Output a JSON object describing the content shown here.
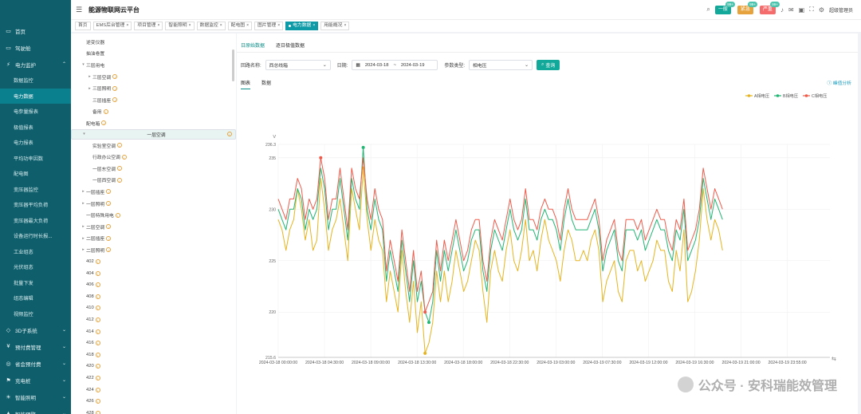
{
  "app": {
    "title": "能源物联网云平台"
  },
  "header": {
    "alarms": [
      {
        "label": "一般",
        "count": "99+",
        "color": "#13a99a"
      },
      {
        "label": "紧急",
        "count": "99+",
        "color": "#e6a23c"
      },
      {
        "label": "严重",
        "count": "99+",
        "color": "#f56c6c"
      }
    ],
    "user": "超级管理员"
  },
  "sidebar": {
    "items": [
      {
        "label": "首页",
        "icon": "▭"
      },
      {
        "label": "驾驶舱",
        "icon": "▭"
      },
      {
        "label": "电力监护",
        "icon": "⚡",
        "open": true,
        "children": [
          "数据监控",
          "电力数据",
          "电参量报表",
          "极值报表",
          "电力报表",
          "平均功率因数",
          "配电图",
          "变压器监控",
          "变压器平均负荷",
          "变压器最大负荷",
          "设备运行时长报...",
          "工业组态",
          "光伏组态",
          "批量下发",
          "组态编辑",
          "视频监控"
        ]
      },
      {
        "label": "3D子系统",
        "icon": "◇"
      },
      {
        "label": "预付费管理",
        "icon": "¥"
      },
      {
        "label": "省会预付费",
        "icon": "◎"
      },
      {
        "label": "充电桩",
        "icon": "⚑"
      },
      {
        "label": "智能照明",
        "icon": "☀"
      },
      {
        "label": "智能预警",
        "icon": "▲"
      }
    ],
    "active": "电力数据"
  },
  "tabs": [
    {
      "label": "首页"
    },
    {
      "label": "EMS后台管理"
    },
    {
      "label": "项目管理"
    },
    {
      "label": "智能照明"
    },
    {
      "label": "数据监控"
    },
    {
      "label": "配电图"
    },
    {
      "label": "图片管理"
    },
    {
      "label": "电力数据",
      "active": true
    },
    {
      "label": "用能概况"
    }
  ],
  "tree": {
    "nodes": [
      {
        "label": "逆变仪器",
        "indent": 0,
        "tg": ""
      },
      {
        "label": "抽油卷置",
        "indent": 0,
        "tg": ""
      },
      {
        "label": "三层用电",
        "indent": 0,
        "tg": "▾"
      },
      {
        "label": "三层空调",
        "indent": 1,
        "tg": "▸",
        "badge": true
      },
      {
        "label": "三层照明",
        "indent": 1,
        "tg": "▸",
        "badge": true
      },
      {
        "label": "三层插座",
        "indent": 1,
        "tg": "",
        "badge": true
      },
      {
        "label": "备用",
        "indent": 1,
        "tg": "",
        "badge": true
      },
      {
        "label": "配电箱",
        "indent": 0,
        "tg": "",
        "badge": true
      },
      {
        "label": "一层空调",
        "indent": 0,
        "tg": "▾",
        "badge": true,
        "sel": true
      },
      {
        "label": "实验室空调",
        "indent": 1,
        "tg": "",
        "badge": true
      },
      {
        "label": "行政办公空调",
        "indent": 1,
        "tg": "",
        "badge": true
      },
      {
        "label": "一层东空调",
        "indent": 1,
        "tg": "",
        "badge": true
      },
      {
        "label": "一层西空调",
        "indent": 1,
        "tg": "",
        "badge": true
      },
      {
        "label": "一层插座",
        "indent": 0,
        "tg": "▸",
        "badge": true
      },
      {
        "label": "一层照明",
        "indent": 0,
        "tg": "▸",
        "badge": true
      },
      {
        "label": "一层特殊用电",
        "indent": 0,
        "tg": "",
        "badge": true
      },
      {
        "label": "二层空调",
        "indent": 0,
        "tg": "▸",
        "badge": true
      },
      {
        "label": "二层插座",
        "indent": 0,
        "tg": "▸",
        "badge": true
      },
      {
        "label": "二层照明",
        "indent": 0,
        "tg": "▸",
        "badge": true
      },
      {
        "label": "402",
        "indent": 0,
        "tg": "",
        "badge": true
      },
      {
        "label": "404",
        "indent": 0,
        "tg": "",
        "badge": true
      },
      {
        "label": "406",
        "indent": 0,
        "tg": "",
        "badge": true
      },
      {
        "label": "408",
        "indent": 0,
        "tg": "",
        "badge": true
      },
      {
        "label": "410",
        "indent": 0,
        "tg": "",
        "badge": true
      },
      {
        "label": "412",
        "indent": 0,
        "tg": "",
        "badge": true
      },
      {
        "label": "414",
        "indent": 0,
        "tg": "",
        "badge": true
      },
      {
        "label": "416",
        "indent": 0,
        "tg": "",
        "badge": true
      },
      {
        "label": "418",
        "indent": 0,
        "tg": "",
        "badge": true
      },
      {
        "label": "420",
        "indent": 0,
        "tg": "",
        "badge": true
      },
      {
        "label": "422",
        "indent": 0,
        "tg": "",
        "badge": true
      },
      {
        "label": "424",
        "indent": 0,
        "tg": "",
        "badge": true
      },
      {
        "label": "426",
        "indent": 0,
        "tg": "",
        "badge": true
      },
      {
        "label": "428",
        "indent": 0,
        "tg": "",
        "badge": true
      }
    ]
  },
  "main": {
    "subtabs": [
      "日原始数据",
      "逐日极值数据"
    ],
    "form": {
      "loop_label": "回路名称:",
      "loop_value": "西总线箱",
      "date_label": "日期:",
      "date_start": "2024-03-18",
      "date_sep": "~",
      "date_end": "2024-03-19",
      "param_label": "参数类型:",
      "param_value": "相电压",
      "query": "查询"
    },
    "view_tabs": [
      "图表",
      "数据"
    ],
    "peak_link": "峰值分析"
  },
  "watermark": "公众号 · 安科瑞能效管理",
  "chart_data": {
    "type": "line",
    "yunit": "V",
    "ylim": [
      215.6,
      236.3
    ],
    "yticks": [
      215.6,
      220,
      225,
      230,
      235,
      236.3
    ],
    "x_labels": [
      "2024-03-18 00:00:00",
      "2024-03-18 04:30:00",
      "2024-03-18 09:00:00",
      "2024-03-18 13:30:00",
      "2024-03-18 18:00:00",
      "2024-03-18 22:30:00",
      "2024-03-19 03:00:00",
      "2024-03-19 07:30:00",
      "2024-03-19 12:00:00",
      "2024-03-19 16:30:00",
      "2024-03-19 21:00:00",
      "2024-03-19 23:55:00"
    ],
    "series": [
      {
        "name": "A相电压",
        "color": "#e6b422",
        "values": [
          229,
          228,
          226,
          228,
          229,
          232,
          230,
          227,
          229,
          226,
          227,
          233,
          230,
          226,
          228,
          229,
          231,
          228,
          225,
          232,
          230,
          228,
          234,
          229,
          226,
          229,
          227,
          226,
          221,
          224,
          222,
          220,
          226,
          222,
          219,
          223,
          218,
          221,
          216,
          217,
          219,
          224,
          221,
          224,
          221,
          223,
          226,
          224,
          222,
          223,
          225,
          227,
          226,
          222,
          219,
          224,
          226,
          224,
          223,
          226,
          228,
          225,
          224,
          226,
          229,
          225,
          226,
          224,
          227,
          229,
          227,
          226,
          225,
          223,
          226,
          228,
          227,
          225,
          225,
          226,
          225,
          227,
          228,
          226,
          221,
          223,
          224,
          225,
          222,
          221,
          225,
          226,
          226,
          224,
          225,
          223,
          224,
          225,
          227,
          226,
          226,
          223,
          222,
          226,
          224,
          228,
          221,
          222,
          224,
          227,
          232,
          229,
          227,
          229,
          228,
          226
        ]
      },
      {
        "name": "B相电压",
        "color": "#22b573",
        "values": [
          230,
          229,
          228,
          230,
          230,
          232,
          231,
          228,
          230,
          229,
          230,
          234,
          232,
          228,
          230,
          230,
          233,
          230,
          227,
          233,
          231,
          230,
          236,
          230,
          228,
          231,
          229,
          228,
          223,
          226,
          224,
          222,
          227,
          224,
          221,
          225,
          221,
          223,
          220,
          219,
          221,
          226,
          223,
          226,
          224,
          226,
          228,
          226,
          224,
          225,
          227,
          228,
          228,
          224,
          222,
          226,
          228,
          227,
          226,
          228,
          230,
          228,
          227,
          228,
          231,
          228,
          228,
          227,
          229,
          230,
          229,
          229,
          228,
          226,
          229,
          231,
          229,
          228,
          228,
          228,
          228,
          229,
          230,
          228,
          224,
          226,
          227,
          228,
          225,
          224,
          228,
          228,
          228,
          227,
          228,
          226,
          227,
          228,
          229,
          228,
          228,
          226,
          225,
          228,
          227,
          230,
          225,
          226,
          227,
          229,
          233,
          231,
          229,
          231,
          230,
          229
        ]
      },
      {
        "name": "C相电压",
        "color": "#ef5b4b",
        "values": [
          231,
          230,
          229,
          231,
          231,
          233,
          232,
          229,
          231,
          230,
          231,
          235,
          233,
          229,
          231,
          231,
          234,
          231,
          228,
          234,
          232,
          231,
          235,
          231,
          229,
          232,
          230,
          229,
          224,
          227,
          225,
          223,
          228,
          225,
          222,
          226,
          222,
          224,
          220,
          221,
          222,
          227,
          224,
          227,
          225,
          227,
          229,
          227,
          225,
          226,
          228,
          229,
          229,
          225,
          223,
          227,
          229,
          228,
          227,
          229,
          231,
          229,
          228,
          229,
          232,
          229,
          229,
          228,
          230,
          231,
          230,
          230,
          229,
          227,
          230,
          232,
          230,
          229,
          229,
          229,
          229,
          230,
          231,
          229,
          225,
          227,
          228,
          229,
          226,
          225,
          229,
          229,
          229,
          228,
          229,
          227,
          228,
          229,
          230,
          229,
          229,
          227,
          226,
          229,
          228,
          231,
          226,
          227,
          228,
          230,
          234,
          232,
          230,
          232,
          231,
          230
        ]
      }
    ],
    "legend_position": "top-right",
    "grid": true
  }
}
